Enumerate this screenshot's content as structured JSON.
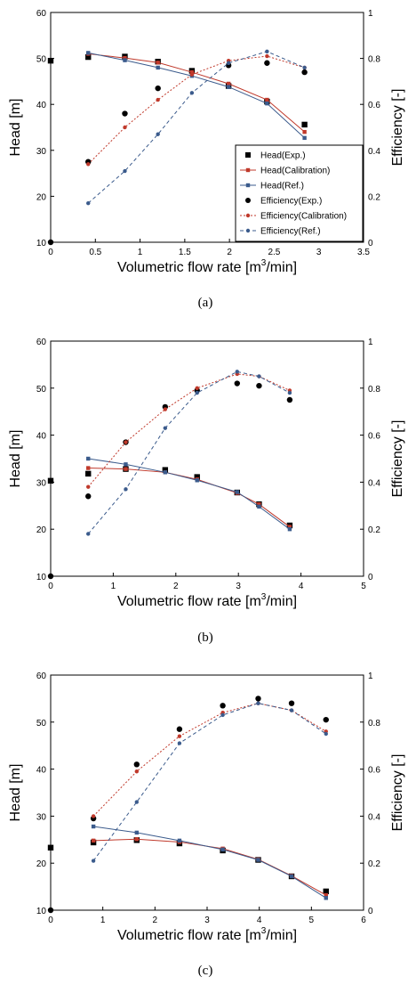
{
  "chart_data": [
    {
      "type": "line",
      "caption": "(a)",
      "xlabel": "Volumetric flow rate [m",
      "xlabel_sup": "3",
      "xlabel_tail": "/min]",
      "ylabel": "Head [m]",
      "y2label": "Efficiency [-]",
      "xlim": [
        0,
        3.5
      ],
      "xticks": [
        0,
        0.5,
        1,
        1.5,
        2,
        2.5,
        3,
        3.5
      ],
      "ylim": [
        10,
        60
      ],
      "yticks": [
        10,
        20,
        30,
        40,
        50,
        60
      ],
      "y2lim": [
        0,
        1
      ],
      "y2ticks": [
        0,
        0.2,
        0.4,
        0.6,
        0.8,
        1
      ],
      "legend": "inside-lower-right",
      "series": [
        {
          "name": "Head(Exp.)",
          "axis": "left",
          "marker": "square",
          "color": "#000000",
          "line": false,
          "x": [
            0,
            0.42,
            0.83,
            1.2,
            1.58,
            1.99,
            2.42,
            2.84
          ],
          "y": [
            49.5,
            50.3,
            50.4,
            49.3,
            47.3,
            44,
            40.6,
            35.6
          ]
        },
        {
          "name": "Head(Calibration)",
          "axis": "left",
          "marker": "square",
          "color": "#c0392b",
          "line": "solid",
          "x": [
            0.42,
            0.83,
            1.2,
            1.58,
            1.99,
            2.42,
            2.84
          ],
          "y": [
            51,
            50.1,
            49.1,
            47,
            44.5,
            41,
            34
          ]
        },
        {
          "name": "Head(Ref.)",
          "axis": "left",
          "marker": "square",
          "color": "#3b5b8c",
          "line": "solid",
          "x": [
            0.42,
            0.83,
            1.2,
            1.58,
            1.99,
            2.42,
            2.84
          ],
          "y": [
            51.2,
            49.6,
            48,
            46.2,
            43.8,
            40.2,
            32.7
          ]
        },
        {
          "name": "Efficiency(Exp.)",
          "axis": "right",
          "marker": "circle",
          "color": "#000000",
          "line": false,
          "x": [
            0,
            0.42,
            0.83,
            1.2,
            1.99,
            2.42,
            2.84
          ],
          "y": [
            0,
            0.35,
            0.56,
            0.67,
            0.77,
            0.78,
            0.74
          ]
        },
        {
          "name": "Efficiency(Calibration)",
          "axis": "right",
          "marker": "circle",
          "color": "#c0392b",
          "line": "dotted",
          "x": [
            0.42,
            0.83,
            1.2,
            1.58,
            1.99,
            2.42,
            2.84
          ],
          "y": [
            0.34,
            0.5,
            0.62,
            0.73,
            0.79,
            0.81,
            0.76
          ]
        },
        {
          "name": "Efficiency(Ref.)",
          "axis": "right",
          "marker": "circle",
          "color": "#3b5b8c",
          "line": "dashed",
          "x": [
            0.42,
            0.83,
            1.2,
            1.58,
            1.99,
            2.42,
            2.84
          ],
          "y": [
            0.17,
            0.31,
            0.47,
            0.65,
            0.78,
            0.83,
            0.76
          ]
        }
      ]
    },
    {
      "type": "line",
      "caption": "(b)",
      "xlabel": "Volumetric flow rate [m",
      "xlabel_sup": "3",
      "xlabel_tail": "/min]",
      "ylabel": "Head [m]",
      "y2label": "Efficiency [-]",
      "xlim": [
        0,
        5
      ],
      "xticks": [
        0,
        1,
        2,
        3,
        4,
        5
      ],
      "ylim": [
        10,
        60
      ],
      "yticks": [
        10,
        20,
        30,
        40,
        50,
        60
      ],
      "y2lim": [
        0,
        1
      ],
      "y2ticks": [
        0,
        0.2,
        0.4,
        0.6,
        0.8,
        1
      ],
      "series": [
        {
          "name": "Head(Exp.)",
          "axis": "left",
          "marker": "square",
          "color": "#000000",
          "line": false,
          "x": [
            0,
            0.6,
            1.2,
            1.83,
            2.34,
            2.98,
            3.33,
            3.82
          ],
          "y": [
            30.3,
            31.8,
            32.8,
            32.6,
            31.1,
            27.8,
            25.3,
            20.8
          ]
        },
        {
          "name": "Head(Calibration)",
          "axis": "left",
          "marker": "square",
          "color": "#c0392b",
          "line": "solid",
          "x": [
            0.6,
            1.2,
            1.83,
            2.34,
            2.98,
            3.33,
            3.82
          ],
          "y": [
            33,
            32.8,
            32.1,
            30.6,
            27.7,
            25.3,
            20.5
          ]
        },
        {
          "name": "Head(Ref.)",
          "axis": "left",
          "marker": "square",
          "color": "#3b5b8c",
          "line": "solid",
          "x": [
            0.6,
            1.2,
            1.83,
            2.34,
            2.98,
            3.33,
            3.82
          ],
          "y": [
            35,
            33.8,
            32.1,
            30.4,
            27.9,
            24.8,
            20
          ]
        },
        {
          "name": "Efficiency(Exp.)",
          "axis": "right",
          "marker": "circle",
          "color": "#000000",
          "line": false,
          "x": [
            0,
            0.6,
            1.2,
            1.83,
            2.34,
            2.98,
            3.33,
            3.82
          ],
          "y": [
            0,
            0.34,
            0.57,
            0.72,
            0.79,
            0.82,
            0.81,
            0.75
          ]
        },
        {
          "name": "Efficiency(Calibration)",
          "axis": "right",
          "marker": "circle",
          "color": "#c0392b",
          "line": "dotted",
          "x": [
            0.6,
            1.2,
            1.83,
            2.34,
            2.98,
            3.33,
            3.82
          ],
          "y": [
            0.38,
            0.57,
            0.71,
            0.8,
            0.86,
            0.85,
            0.79
          ]
        },
        {
          "name": "Efficiency(Ref.)",
          "axis": "right",
          "marker": "circle",
          "color": "#3b5b8c",
          "line": "dashed",
          "x": [
            0.6,
            1.2,
            1.83,
            2.34,
            2.98,
            3.33,
            3.82
          ],
          "y": [
            0.18,
            0.37,
            0.63,
            0.78,
            0.87,
            0.85,
            0.78
          ]
        }
      ]
    },
    {
      "type": "line",
      "caption": "(c)",
      "xlabel": "Volumetric flow rate [m",
      "xlabel_sup": "3",
      "xlabel_tail": "/min]",
      "ylabel": "Head [m]",
      "y2label": "Efficiency [-]",
      "xlim": [
        0,
        6
      ],
      "xticks": [
        0,
        1,
        2,
        3,
        4,
        5,
        6
      ],
      "ylim": [
        10,
        60
      ],
      "yticks": [
        10,
        20,
        30,
        40,
        50,
        60
      ],
      "y2lim": [
        0,
        1
      ],
      "y2ticks": [
        0,
        0.2,
        0.4,
        0.6,
        0.8,
        1
      ],
      "series": [
        {
          "name": "Head(Exp.)",
          "axis": "left",
          "marker": "square",
          "color": "#000000",
          "line": false,
          "x": [
            0,
            0.82,
            1.65,
            2.47,
            3.3,
            3.98,
            4.62,
            5.28
          ],
          "y": [
            23.3,
            24.4,
            24.9,
            24.2,
            22.7,
            20.7,
            17.2,
            14
          ]
        },
        {
          "name": "Head(Calibration)",
          "axis": "left",
          "marker": "square",
          "color": "#c0392b",
          "line": "solid",
          "x": [
            0.82,
            1.65,
            2.47,
            3.3,
            3.98,
            4.62,
            5.28
          ],
          "y": [
            24.8,
            25.1,
            24.5,
            23.1,
            20.8,
            17.3,
            13.2
          ]
        },
        {
          "name": "Head(Ref.)",
          "axis": "left",
          "marker": "square",
          "color": "#3b5b8c",
          "line": "solid",
          "x": [
            0.82,
            1.65,
            2.47,
            3.3,
            3.98,
            4.62,
            5.28
          ],
          "y": [
            27.8,
            26.5,
            24.8,
            22.9,
            20.7,
            17.2,
            12.6
          ]
        },
        {
          "name": "Efficiency(Exp.)",
          "axis": "right",
          "marker": "circle",
          "color": "#000000",
          "line": false,
          "x": [
            0,
            0.82,
            1.65,
            2.47,
            3.3,
            3.98,
            4.62,
            5.28
          ],
          "y": [
            0,
            0.39,
            0.62,
            0.77,
            0.87,
            0.9,
            0.88,
            0.81
          ]
        },
        {
          "name": "Efficiency(Calibration)",
          "axis": "right",
          "marker": "circle",
          "color": "#c0392b",
          "line": "dotted",
          "x": [
            0.82,
            1.65,
            2.47,
            3.3,
            3.98,
            4.62,
            5.28
          ],
          "y": [
            0.4,
            0.59,
            0.74,
            0.84,
            0.88,
            0.85,
            0.76
          ]
        },
        {
          "name": "Efficiency(Ref.)",
          "axis": "right",
          "marker": "circle",
          "color": "#3b5b8c",
          "line": "dashed",
          "x": [
            0.82,
            1.65,
            2.47,
            3.3,
            3.98,
            4.62,
            5.28
          ],
          "y": [
            0.21,
            0.46,
            0.71,
            0.83,
            0.88,
            0.85,
            0.75
          ]
        }
      ]
    }
  ]
}
